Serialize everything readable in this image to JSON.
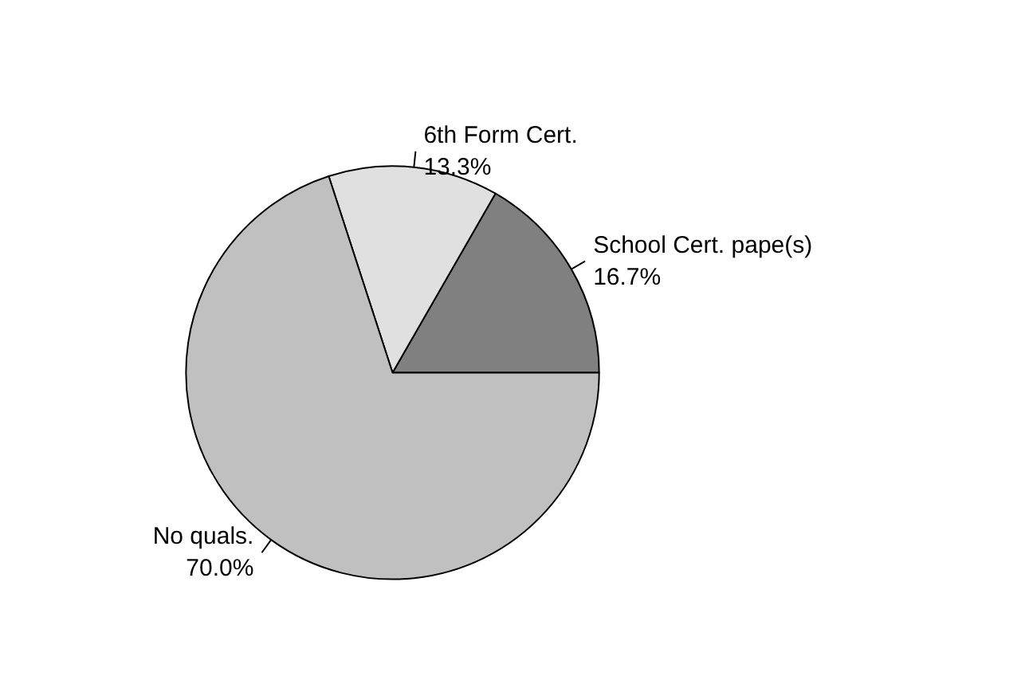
{
  "chart_data": {
    "type": "pie",
    "categories": [
      "School Cert. pape(s)",
      "6th Form Cert.",
      "No quals."
    ],
    "values": [
      16.7,
      13.3,
      70
    ],
    "value_labels": [
      "16.7%",
      "13.3%",
      "70.0%"
    ],
    "colors": [
      "#808080",
      "#e0e0e0",
      "#c0c0c0"
    ],
    "legend": false
  }
}
